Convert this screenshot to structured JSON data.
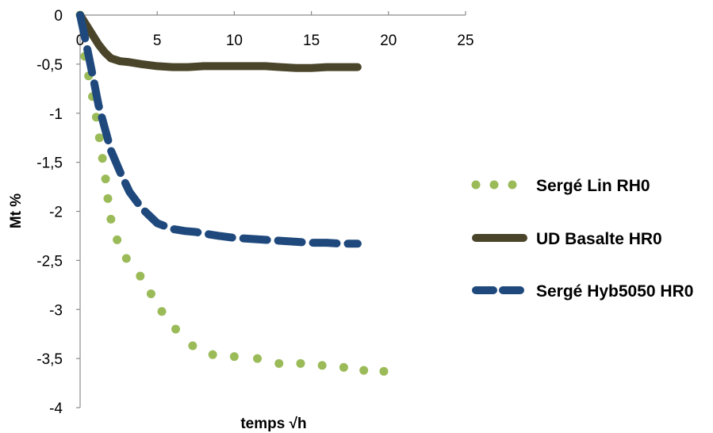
{
  "chart_data": {
    "type": "line",
    "title": "",
    "xlabel": "temps √h",
    "ylabel": "Mt %",
    "xlim": [
      0,
      25
    ],
    "ylim": [
      -4,
      0
    ],
    "x_ticks": [
      0,
      5,
      10,
      15,
      20,
      25
    ],
    "x_tick_labels": [
      "0",
      "5",
      "10",
      "15",
      "20",
      "25"
    ],
    "y_ticks": [
      0,
      -0.5,
      -1,
      -1.5,
      -2,
      -2.5,
      -3,
      -3.5,
      -4
    ],
    "y_tick_labels": [
      "0",
      "-0,5",
      "-1",
      "-1,5",
      "-2",
      "-2,5",
      "-3",
      "-3,5",
      "-4"
    ],
    "grid": false,
    "legend_position": "right",
    "series": [
      {
        "name": "Sergé Lin RH0",
        "style": "dotted",
        "color": "#9bbb59",
        "x": [
          0,
          0.3,
          0.55,
          0.8,
          1.05,
          1.25,
          1.45,
          1.65,
          1.8,
          2.0,
          2.4,
          3.0,
          3.9,
          4.6,
          5.3,
          6.2,
          7.3,
          8.6,
          10.0,
          11.5,
          12.9,
          14.3,
          15.7,
          17.1,
          18.4,
          19.7
        ],
        "y": [
          0,
          -0.42,
          -0.62,
          -0.83,
          -1.04,
          -1.25,
          -1.46,
          -1.67,
          -1.87,
          -2.08,
          -2.29,
          -2.48,
          -2.66,
          -2.84,
          -3.02,
          -3.2,
          -3.37,
          -3.46,
          -3.48,
          -3.5,
          -3.55,
          -3.55,
          -3.57,
          -3.59,
          -3.62,
          -3.63
        ]
      },
      {
        "name": "UD Basalte HR0",
        "style": "solid",
        "color": "#4a452a",
        "x": [
          0,
          0.4,
          0.8,
          1.2,
          1.6,
          2.0,
          2.6,
          3.2,
          4.0,
          5.0,
          6.0,
          7.0,
          8.0,
          9.0,
          10.0,
          11.0,
          12.0,
          13.0,
          14.0,
          15.0,
          16.0,
          17.0,
          18.0
        ],
        "y": [
          0,
          -0.1,
          -0.2,
          -0.3,
          -0.38,
          -0.44,
          -0.47,
          -0.48,
          -0.5,
          -0.52,
          -0.53,
          -0.53,
          -0.52,
          -0.52,
          -0.52,
          -0.52,
          -0.52,
          -0.53,
          -0.54,
          -0.54,
          -0.53,
          -0.53,
          -0.53
        ]
      },
      {
        "name": "Sergé Hyb5050 HR0",
        "style": "dashed",
        "color": "#1f497d",
        "x": [
          0,
          0.3,
          0.6,
          0.9,
          1.2,
          1.6,
          2.0,
          2.6,
          3.2,
          4.0,
          5.0,
          6.0,
          6.8,
          7.5,
          8.2,
          9.0,
          10.0,
          11.0,
          12.0,
          13.0,
          14.0,
          15.0,
          16.0,
          17.0,
          18.0
        ],
        "y": [
          0,
          -0.22,
          -0.45,
          -0.68,
          -0.92,
          -1.15,
          -1.38,
          -1.6,
          -1.8,
          -1.97,
          -2.12,
          -2.18,
          -2.2,
          -2.21,
          -2.23,
          -2.25,
          -2.27,
          -2.28,
          -2.29,
          -2.3,
          -2.31,
          -2.32,
          -2.32,
          -2.33,
          -2.33
        ]
      }
    ]
  }
}
